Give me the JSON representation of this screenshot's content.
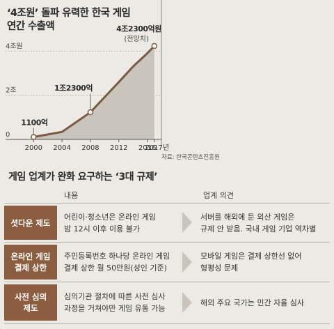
{
  "chart_data": {
    "type": "area",
    "title": "‘4조원’ 돌파 유력한 한국 게임 연간 수출액",
    "title_lines": [
      "‘4조원’ 돌파 유력한 한국 게임",
      "연간 수출액"
    ],
    "x": [
      2000,
      2004,
      2008,
      2012,
      2014,
      2016,
      2017
    ],
    "y": [
      1100,
      3400,
      12300,
      26000,
      33000,
      39000,
      42300
    ],
    "xticks": [
      "2000",
      "2004",
      "2008",
      "2012",
      "2016",
      "2017년"
    ],
    "xtick_values": [
      2000,
      2004,
      2008,
      2012,
      2016,
      2017
    ],
    "yticks": [
      {
        "value": 0,
        "label": "0"
      },
      {
        "value": 20000,
        "label": "2조"
      },
      {
        "value": 40000,
        "label": "4조원"
      }
    ],
    "ylim": [
      0,
      48000
    ],
    "xlim": [
      1998.5,
      2018
    ],
    "annotations": [
      {
        "x": 2000,
        "y": 1100,
        "text": "1100억"
      },
      {
        "x": 2008,
        "y": 12300,
        "text": "1조2300억"
      },
      {
        "x": 2017,
        "y": 42300,
        "text": "4조2300억원",
        "subtext": "(전망치)"
      }
    ],
    "source": "자료: 한국콘텐츠진흥원",
    "line_color": "#7a5a44",
    "fill_color": "#c9c5bc"
  },
  "table": {
    "title": "게임 업계가 완화 요구하는 ‘3대 규제’",
    "headers": {
      "content": "내용",
      "opinion": "업계 의견"
    },
    "rows": [
      {
        "label": "셧다운 제도",
        "content": "어린이·청소년은 온라인 게임\n밤 12시 이후 이용 불가",
        "opinion": "서버를 해외에 둔 외산 게임은\n규제 안 받음. 국내 게임 기업 역차별"
      },
      {
        "label": "온라인 게임\n결제 상한",
        "content": "주민등록번호 하나당 온라인 게임\n결제 상한 월 50만원(성인 기준)",
        "opinion": "모바일 게임은 결제 상한선 없어\n형평성 문제"
      },
      {
        "label": "사전 심의\n제도",
        "content": "심의기관 절차에 따른 사전 심사\n과정을 거쳐야만 게임 유통 가능",
        "opinion": "해외 주요 국가는 민간 자율 심사"
      }
    ]
  },
  "colors": {
    "background": "#eceae4",
    "label_bg": "#8c5d3e",
    "divider": "#b9b5ab"
  }
}
